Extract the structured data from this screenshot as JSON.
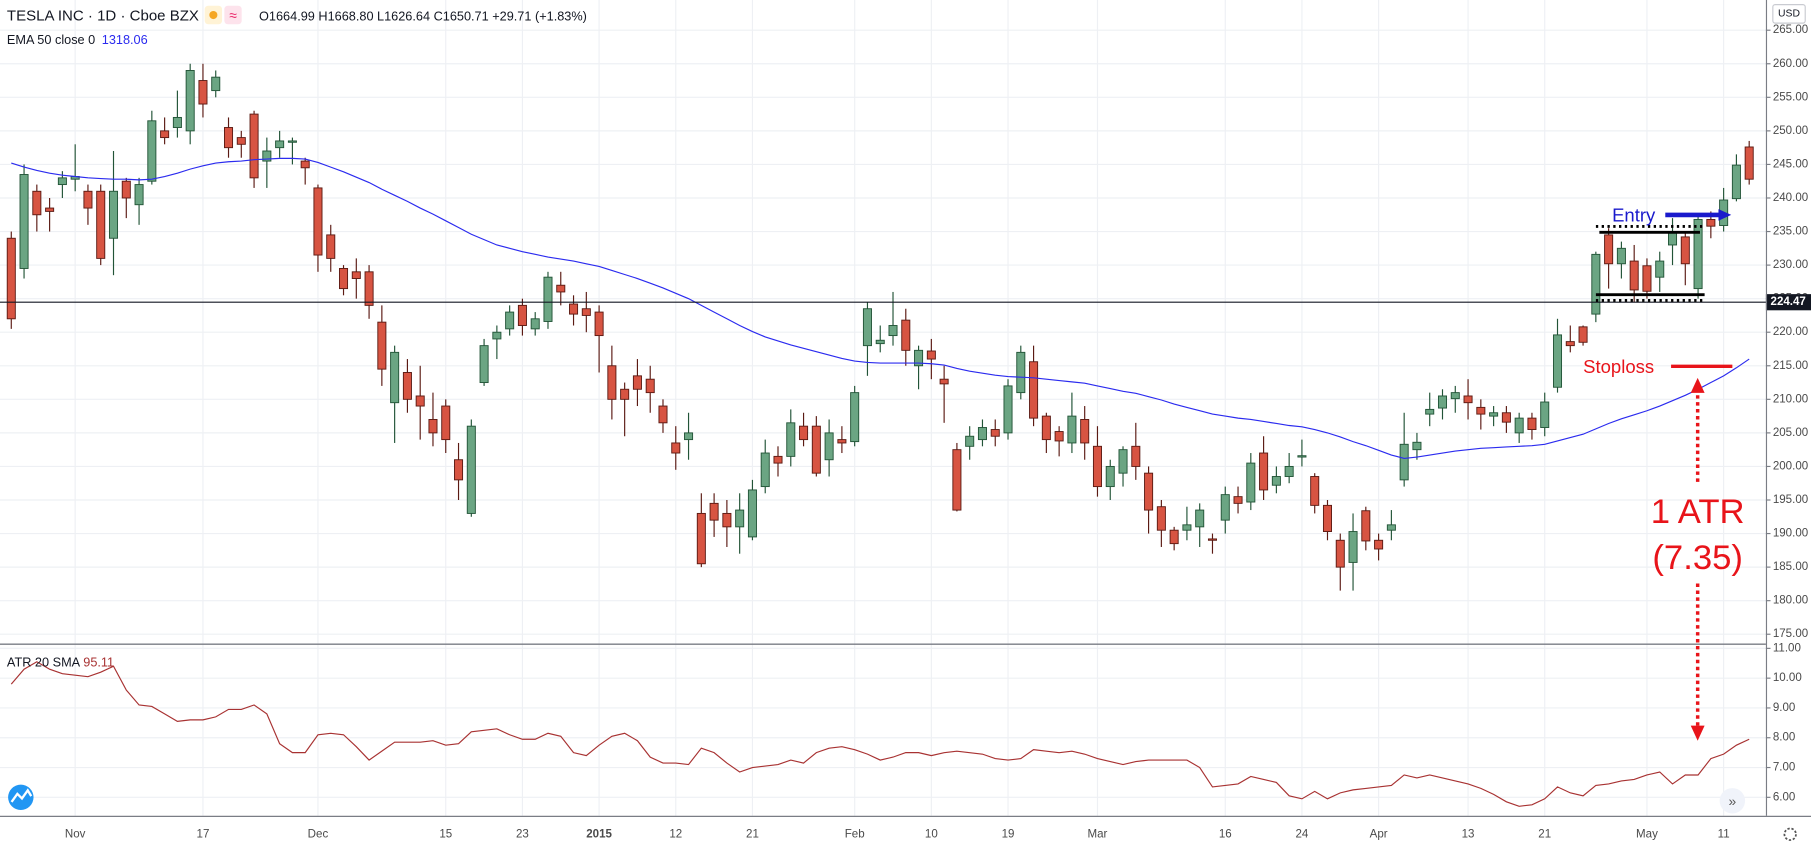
{
  "header": {
    "title": "TESLA INC · 1D · Cboe BZX",
    "ohlc": "O1664.99 H1668.80 L1626.64 C1650.71 +29.71 (+1.83%)",
    "currency": "USD"
  },
  "chart_data": [
    {
      "type": "candlestick",
      "categories": [
        null,
        null,
        null,
        null,
        null,
        "Nov",
        null,
        null,
        null,
        null,
        null,
        null,
        null,
        null,
        null,
        "17",
        null,
        null,
        null,
        null,
        null,
        null,
        null,
        null,
        "Dec",
        null,
        null,
        null,
        null,
        null,
        null,
        null,
        null,
        null,
        "15",
        null,
        null,
        null,
        null,
        null,
        "23",
        null,
        null,
        null,
        null,
        null,
        "2015",
        null,
        null,
        null,
        null,
        null,
        "12",
        null,
        null,
        null,
        null,
        null,
        "21",
        null,
        null,
        null,
        null,
        null,
        null,
        null,
        "Feb",
        null,
        null,
        null,
        null,
        null,
        "10",
        null,
        null,
        null,
        null,
        null,
        "19",
        null,
        null,
        null,
        null,
        null,
        null,
        "Mar",
        null,
        null,
        null,
        null,
        null,
        null,
        null,
        null,
        null,
        "16",
        null,
        null,
        null,
        null,
        null,
        "24",
        null,
        null,
        null,
        null,
        null,
        "Apr",
        null,
        null,
        null,
        null,
        null,
        null,
        "13",
        null,
        null,
        null,
        null,
        null,
        "21",
        null,
        null,
        null,
        null,
        null,
        null,
        null,
        "May",
        null,
        null,
        null,
        null,
        null,
        "11",
        null,
        null
      ],
      "open": [
        234,
        229.5,
        241,
        238.5,
        242,
        242.8,
        241,
        241,
        234,
        242.5,
        239,
        242.5,
        250,
        250.5,
        250,
        257.5,
        256,
        250.5,
        249,
        252.5,
        245.5,
        247.5,
        248.3,
        245.5,
        241.5,
        234.5,
        229.5,
        229,
        229,
        221.5,
        209.5,
        214,
        210.5,
        207,
        209,
        201,
        193,
        212.5,
        219,
        220.5,
        224,
        220.5,
        221.6,
        227,
        224.2,
        223.5,
        223,
        215,
        211.5,
        213.5,
        213,
        209,
        203.5,
        204,
        193,
        194.5,
        193,
        191,
        189.5,
        197,
        201.5,
        201.5,
        206,
        206,
        201,
        204,
        203.7,
        218,
        218.3,
        219.5,
        221.8,
        215,
        217.2,
        213,
        202.5,
        203,
        204,
        205.5,
        205,
        211,
        215.6,
        207.5,
        205.2,
        203.5,
        207,
        203,
        197,
        199,
        203,
        199,
        194,
        190.5,
        190.5,
        191,
        189.2,
        192,
        195.5,
        194.7,
        202,
        197.2,
        198.5,
        201.4,
        198.5,
        194.2,
        189,
        185.7,
        193.4,
        189,
        190.5,
        198,
        202.5,
        207.8,
        208.7,
        210.1,
        210.5,
        208.8,
        207.5,
        208,
        205,
        207.2,
        205.8,
        211.8,
        218.6,
        220.8,
        222.7,
        234.5,
        230.2,
        230.6,
        229.9,
        228.2,
        233,
        234.2,
        226.5,
        236.8,
        235.9,
        239.9,
        247.6
      ],
      "high": [
        235,
        245,
        242,
        240,
        244,
        248,
        242,
        242,
        247,
        243,
        243,
        253,
        252,
        256,
        260,
        260,
        259,
        252,
        250,
        253,
        249,
        250,
        249,
        246,
        242,
        236,
        230,
        231,
        230,
        224,
        218,
        216,
        215,
        211,
        210,
        203.5,
        207,
        219,
        221,
        224,
        225,
        223,
        229,
        229,
        225.5,
        226,
        224,
        218,
        212.5,
        216,
        215,
        210,
        206,
        208,
        196,
        196,
        195,
        196,
        198,
        204,
        203,
        208.5,
        208,
        207.5,
        207,
        206,
        212,
        224.5,
        221,
        226,
        223.5,
        218,
        219,
        215,
        203.5,
        206,
        207,
        207,
        213,
        218,
        218,
        208,
        206,
        211,
        209,
        206,
        201,
        203,
        206.5,
        200,
        195,
        191,
        194,
        194.5,
        190,
        197,
        197,
        202,
        204.5,
        200,
        202,
        204,
        199,
        195,
        190,
        193,
        194,
        190,
        193.5,
        208,
        205,
        211,
        211.5,
        212,
        213,
        210,
        209,
        209,
        208,
        208,
        211,
        222,
        221,
        221,
        232,
        235.5,
        233.5,
        233,
        231,
        232,
        237,
        235,
        237.5,
        238,
        241.5,
        246.5,
        248.5
      ],
      "low": [
        220.5,
        228,
        235,
        235,
        240,
        241,
        236,
        230,
        228.5,
        237,
        236,
        242,
        248,
        249,
        248,
        252,
        255,
        246,
        246,
        241.5,
        241.5,
        246,
        245,
        242,
        229,
        229,
        225.5,
        225,
        222,
        212,
        203.5,
        208,
        204,
        203,
        202,
        195,
        192.5,
        212,
        216,
        219.5,
        219.5,
        219.5,
        220.5,
        224,
        221,
        220,
        214,
        207,
        204.5,
        209,
        208,
        205,
        199.5,
        201,
        185,
        189.5,
        188,
        187,
        189,
        196,
        198.5,
        200,
        203,
        198.5,
        198.5,
        202,
        203,
        213.5,
        217,
        218,
        215,
        211.5,
        213,
        206.5,
        193.3,
        201,
        203,
        203,
        204,
        210,
        206,
        202,
        201.5,
        202,
        201,
        195.5,
        195,
        197,
        198,
        190,
        188,
        187.5,
        189,
        188,
        187,
        190,
        193,
        193.5,
        195,
        196,
        197.5,
        200,
        193,
        189,
        181.5,
        181.5,
        187.5,
        186,
        189,
        197,
        201,
        206,
        207,
        208,
        207,
        205.5,
        206,
        205,
        203.5,
        204,
        204.5,
        211,
        217,
        218,
        221.5,
        226.5,
        228,
        224.5,
        225,
        226,
        230,
        227,
        225,
        234,
        235,
        239.5,
        242
      ],
      "close": [
        222,
        243.5,
        237.5,
        238,
        243,
        243.2,
        238.5,
        231,
        241,
        240,
        242,
        251.5,
        249,
        252,
        259,
        254,
        258,
        247.5,
        248,
        243,
        247,
        248.5,
        248.5,
        244.5,
        231.5,
        231,
        226.5,
        228,
        224,
        214.5,
        217,
        210,
        209,
        205,
        204,
        198,
        206,
        218,
        220,
        223,
        221,
        222,
        228.2,
        226,
        222.7,
        222.5,
        219.5,
        210,
        210,
        211.5,
        211,
        206.5,
        202,
        205,
        185.5,
        192,
        191,
        193.5,
        196.5,
        202,
        200.5,
        206.5,
        204,
        199,
        205,
        203.5,
        211,
        223.5,
        218.8,
        221,
        217.3,
        217.3,
        216,
        212.3,
        193.5,
        204.5,
        205.8,
        204.5,
        212,
        217,
        207.2,
        204,
        203.8,
        207.5,
        203.5,
        197,
        200,
        202.5,
        200,
        193.5,
        190.5,
        188.5,
        191.3,
        193.5,
        189,
        195.8,
        194.5,
        200.5,
        196.5,
        198.5,
        200,
        201.6,
        194.2,
        190.3,
        185,
        190.3,
        188.9,
        187.7,
        191.3,
        203.3,
        203.6,
        208.5,
        210.5,
        211,
        209.5,
        207.8,
        208,
        206.6,
        207.2,
        205.5,
        209.6,
        219.6,
        218,
        218.5,
        231.6,
        230.2,
        232.5,
        226.3,
        226.1,
        230.6,
        235,
        230.2,
        236.8,
        235.8,
        239.7,
        244.9,
        242.8
      ],
      "up_color": "#6ba583",
      "up_border": "#225437",
      "down_color": "#d75442",
      "down_border": "#5b1a13",
      "ylim": [
        173.6,
        269.5
      ],
      "yticks": [
        {
          "value": 265,
          "label": "265.00"
        },
        {
          "value": 260,
          "label": "260.00"
        },
        {
          "value": 255,
          "label": "255.00"
        },
        {
          "value": 250,
          "label": "250.00"
        },
        {
          "value": 245,
          "label": "245.00"
        },
        {
          "value": 240,
          "label": "240.00"
        },
        {
          "value": 235,
          "label": "235.00"
        },
        {
          "value": 230,
          "label": "230.00"
        },
        {
          "value": 225,
          "label": "225.00"
        },
        {
          "value": 220,
          "label": "220.00"
        },
        {
          "value": 215,
          "label": "215.00"
        },
        {
          "value": 210,
          "label": "210.00"
        },
        {
          "value": 205,
          "label": "205.00"
        },
        {
          "value": 200,
          "label": "200.00"
        },
        {
          "value": 195,
          "label": "195.00"
        },
        {
          "value": 190,
          "label": "190.00"
        },
        {
          "value": 185,
          "label": "185.00"
        },
        {
          "value": 180,
          "label": "180.00"
        },
        {
          "value": 175,
          "label": "175.00"
        }
      ],
      "grid": true,
      "series": [
        {
          "name": "EMA 50 close 0",
          "value_label": "1318.06",
          "color": "#2b2bef",
          "values": [
            245.2,
            244.6,
            244.1,
            243.7,
            243.4,
            243.2,
            243.0,
            242.9,
            242.8,
            242.8,
            242.7,
            242.8,
            243.2,
            243.7,
            244.3,
            244.8,
            245.2,
            245.4,
            245.5,
            245.7,
            245.8,
            245.9,
            245.9,
            245.8,
            245.3,
            244.6,
            243.9,
            243.1,
            242.3,
            241.3,
            240.4,
            239.5,
            238.5,
            237.6,
            236.6,
            235.6,
            234.6,
            233.8,
            233.0,
            232.5,
            232.0,
            231.6,
            231.2,
            230.9,
            230.6,
            230.2,
            229.8,
            229.2,
            228.6,
            228.0,
            227.3,
            226.6,
            225.8,
            225.0,
            224.0,
            223.0,
            222.0,
            221.0,
            220.1,
            219.3,
            218.7,
            218.1,
            217.6,
            217.1,
            216.6,
            216.1,
            215.7,
            215.5,
            215.4,
            215.4,
            215.4,
            215.4,
            215.3,
            215.1,
            214.6,
            214.2,
            213.9,
            213.6,
            213.4,
            213.3,
            213.2,
            213.0,
            212.8,
            212.6,
            212.4,
            212.0,
            211.6,
            211.2,
            210.9,
            210.4,
            209.9,
            209.3,
            208.8,
            208.3,
            207.8,
            207.5,
            207.2,
            207.0,
            206.7,
            206.4,
            206.1,
            205.9,
            205.5,
            205.0,
            204.4,
            203.7,
            203.1,
            202.4,
            201.7,
            201.2,
            201.4,
            201.7,
            202.0,
            202.3,
            202.5,
            202.7,
            202.8,
            202.9,
            203.0,
            203.1,
            203.3,
            203.8,
            204.3,
            204.8,
            205.6,
            206.4,
            207.1,
            207.7,
            208.3,
            209.0,
            209.8,
            210.6,
            211.5,
            212.5,
            213.5,
            214.7,
            216.0
          ]
        }
      ],
      "price_line": {
        "value": 224.47,
        "label": "224.47"
      },
      "annotations": [
        "Entry",
        "Stoploss",
        "1 ATR",
        "(7.35)"
      ]
    },
    {
      "type": "line",
      "series": [
        {
          "name": "ATR 20 SMA",
          "value_label": "95.11",
          "color": "#a83232",
          "values": [
            9.8,
            10.3,
            10.55,
            10.3,
            10.15,
            10.1,
            10.05,
            10.2,
            10.4,
            9.6,
            9.1,
            9.05,
            8.8,
            8.55,
            8.6,
            8.6,
            8.7,
            8.95,
            8.95,
            9.1,
            8.8,
            7.8,
            7.5,
            7.5,
            8.1,
            8.15,
            8.1,
            7.7,
            7.25,
            7.55,
            7.85,
            7.85,
            7.85,
            7.9,
            7.75,
            7.8,
            8.2,
            8.25,
            8.3,
            8.1,
            7.95,
            7.95,
            8.15,
            8.05,
            7.5,
            7.4,
            7.75,
            8.05,
            8.15,
            7.9,
            7.35,
            7.15,
            7.15,
            7.1,
            7.65,
            7.5,
            7.15,
            6.85,
            7.0,
            7.05,
            7.1,
            7.25,
            7.15,
            7.5,
            7.65,
            7.7,
            7.6,
            7.45,
            7.25,
            7.35,
            7.5,
            7.5,
            7.4,
            7.5,
            7.55,
            7.5,
            7.45,
            7.3,
            7.25,
            7.3,
            7.6,
            7.55,
            7.5,
            7.55,
            7.45,
            7.3,
            7.2,
            7.1,
            7.2,
            7.25,
            7.25,
            7.25,
            7.25,
            7.0,
            6.35,
            6.4,
            6.45,
            6.7,
            6.6,
            6.5,
            6.05,
            5.95,
            6.2,
            5.95,
            6.15,
            6.25,
            6.3,
            6.35,
            6.4,
            6.75,
            6.65,
            6.75,
            6.65,
            6.55,
            6.45,
            6.3,
            6.1,
            5.85,
            5.7,
            5.75,
            5.95,
            6.35,
            6.15,
            6.05,
            6.4,
            6.45,
            6.55,
            6.6,
            6.75,
            6.85,
            6.45,
            6.75,
            6.75,
            7.3,
            7.45,
            7.75,
            7.95
          ]
        }
      ],
      "ylim": [
        5.38,
        11.12
      ],
      "yticks": [
        {
          "value": 11,
          "label": "11.00"
        },
        {
          "value": 10,
          "label": "10.00"
        },
        {
          "value": 9,
          "label": "9.00"
        },
        {
          "value": 8,
          "label": "8.00"
        },
        {
          "value": 7,
          "label": "7.00"
        },
        {
          "value": 6,
          "label": "6.00"
        }
      ],
      "grid": true
    }
  ]
}
